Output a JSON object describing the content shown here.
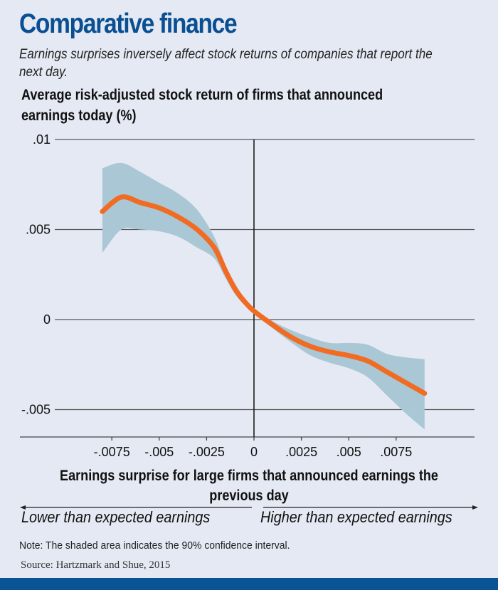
{
  "header": {
    "title": "Comparative finance",
    "subtitle": "Earnings surprises inversely affect stock returns of companies that report the next day."
  },
  "colors": {
    "title": "#0b4f93",
    "line": "#f26b22",
    "band": "#a9c7d4",
    "background": "#e4e9f3",
    "bottom_bar": "#0a5496"
  },
  "chart_data": {
    "type": "line",
    "title": "Comparative finance",
    "subtitle": "Earnings surprises inversely affect stock returns of companies that report the next day.",
    "ylabel": "Average risk-adjusted stock return of firms that announced earnings today (%)",
    "xlabel": "Earnings surprise for large firms that announced earnings the previous day",
    "xlim": [
      -0.0105,
      0.0117
    ],
    "ylim": [
      -0.0065,
      0.01
    ],
    "x_ticks": [
      -0.0075,
      -0.005,
      -0.0025,
      0,
      0.0025,
      0.005,
      0.0075
    ],
    "x_tick_labels": [
      "-.0075",
      "-.005",
      "-.0025",
      "0",
      ".0025",
      ".005",
      ".0075"
    ],
    "y_ticks": [
      0.01,
      0.005,
      0,
      -0.005
    ],
    "y_tick_labels": [
      ".01",
      ".005",
      "0",
      "-.005"
    ],
    "grid": "horizontal",
    "x": [
      -0.008,
      -0.007,
      -0.006,
      -0.005,
      -0.004,
      -0.003,
      -0.0021,
      -0.0015,
      -0.001,
      -0.0005,
      0,
      0.001,
      0.002,
      0.003,
      0.004,
      0.005,
      0.006,
      0.007,
      0.008,
      0.009
    ],
    "series": [
      {
        "name": "Average risk-adjusted stock return",
        "values": [
          0.006,
          0.0068,
          0.0065,
          0.0062,
          0.0057,
          0.005,
          0.004,
          0.0027,
          0.0017,
          0.001,
          0.00047,
          -0.0003,
          -0.001,
          -0.0015,
          -0.0018,
          -0.002,
          -0.0023,
          -0.0029,
          -0.0035,
          -0.0041
        ]
      }
    ],
    "confidence_interval": {
      "level": "90%",
      "upper": [
        0.0084,
        0.0087,
        0.0082,
        0.0076,
        0.007,
        0.0061,
        0.0046,
        0.003,
        0.002,
        0.0012,
        0.0006,
        -0.0001,
        -0.0006,
        -0.001,
        -0.0013,
        -0.0013,
        -0.0014,
        -0.0019,
        -0.0021,
        -0.0022
      ],
      "lower": [
        0.0037,
        0.005,
        0.005,
        0.0049,
        0.0046,
        0.004,
        0.0034,
        0.0023,
        0.0014,
        0.0008,
        0.0003,
        -0.0005,
        -0.0013,
        -0.002,
        -0.0024,
        -0.0027,
        -0.0032,
        -0.0042,
        -0.0052,
        -0.0061
      ]
    },
    "direction_labels": {
      "left": "Lower than expected earnings",
      "right": "Higher than expected earnings"
    }
  },
  "footer": {
    "note": "Note: The shaded area indicates the 90% confidence interval.",
    "source": "Source: Hartzmark and Shue, 2015"
  }
}
